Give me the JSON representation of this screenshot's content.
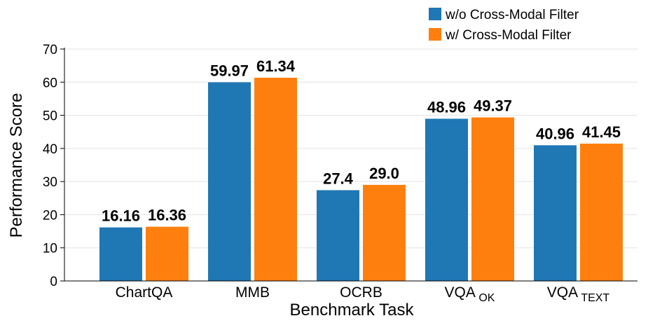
{
  "chart_data": {
    "type": "bar",
    "categories": [
      {
        "label": "ChartQA",
        "sub": ""
      },
      {
        "label": "MMB",
        "sub": ""
      },
      {
        "label": "OCRB",
        "sub": ""
      },
      {
        "label": "VQA",
        "sub": "OK"
      },
      {
        "label": "VQA",
        "sub": "TEXT"
      }
    ],
    "series": [
      {
        "name": "w/o Cross-Modal Filter",
        "color": "#1f77b4",
        "values": [
          16.16,
          59.97,
          27.4,
          48.96,
          40.96
        ],
        "labels": [
          "16.16",
          "59.97",
          "27.4",
          "48.96",
          "40.96"
        ]
      },
      {
        "name": "w/ Cross-Modal Filter",
        "color": "#ff7f0e",
        "values": [
          16.36,
          61.34,
          29.0,
          49.37,
          41.45
        ],
        "labels": [
          "16.36",
          "61.34",
          "29.0",
          "49.37",
          "41.45"
        ]
      }
    ],
    "xlabel": "Benchmark Task",
    "ylabel": "Performance Score",
    "ylim": [
      0,
      70
    ],
    "yticks": [
      0,
      10,
      20,
      30,
      40,
      50,
      60,
      70
    ],
    "grid": true,
    "legend": "top-right"
  }
}
